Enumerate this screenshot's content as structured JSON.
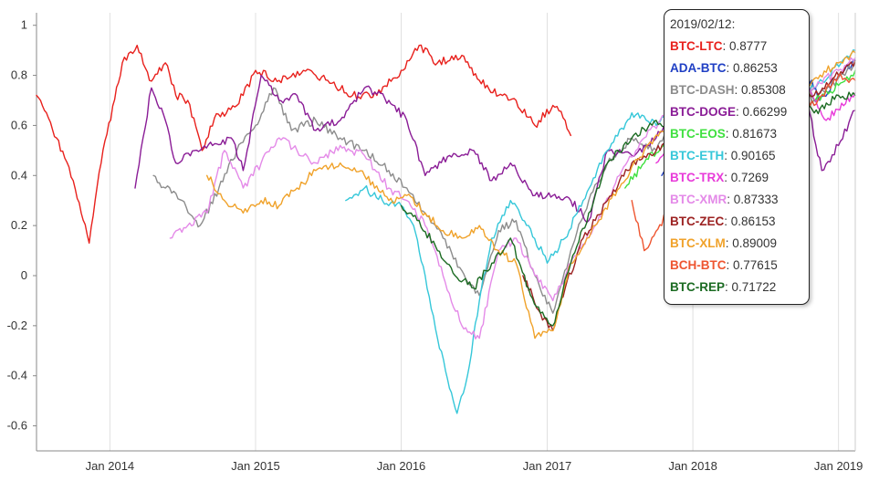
{
  "chart_data": {
    "type": "line",
    "ylim": [
      -0.7,
      1.05
    ],
    "y_ticks": [
      1,
      0.8,
      0.6,
      0.4,
      0.2,
      0,
      -0.2,
      -0.4,
      -0.6
    ],
    "y_tick_labels": [
      "1",
      "0.8",
      "0.6",
      "0.4",
      "0.2",
      "0",
      "-0.2",
      "-0.4",
      "-0.6"
    ],
    "x_range": [
      "2013-07-01",
      "2019-02-12"
    ],
    "x_ticks": [
      "2014-01-01",
      "2015-01-01",
      "2016-01-01",
      "2017-01-01",
      "2018-01-01",
      "2019-01-01"
    ],
    "x_tick_labels": [
      "Jan 2014",
      "Jan 2015",
      "Jan 2016",
      "Jan 2017",
      "Jan 2018",
      "Jan 2019"
    ],
    "grid": "vertical lines at x ticks",
    "tooltip": {
      "date": "2019/02/12:",
      "rows": [
        {
          "name": "BTC-LTC",
          "value": "0.8777"
        },
        {
          "name": "ADA-BTC",
          "value": "0.86253"
        },
        {
          "name": "BTC-DASH",
          "value": "0.85308"
        },
        {
          "name": "BTC-DOGE",
          "value": "0.66299"
        },
        {
          "name": "BTC-EOS",
          "value": "0.81673"
        },
        {
          "name": "BTC-ETH",
          "value": "0.90165"
        },
        {
          "name": "BTC-TRX",
          "value": "0.7269"
        },
        {
          "name": "BTC-XMR",
          "value": "0.87333"
        },
        {
          "name": "BTC-ZEC",
          "value": "0.86153"
        },
        {
          "name": "BTC-XLM",
          "value": "0.89009"
        },
        {
          "name": "BCH-BTC",
          "value": "0.77615"
        },
        {
          "name": "BTC-REP",
          "value": "0.71722"
        }
      ]
    },
    "series": [
      {
        "name": "BTC-LTC",
        "color": "#e8201c",
        "x": [
          "2013-07-01",
          "2013-08-20",
          "2013-10-01",
          "2013-11-10",
          "2013-12-10",
          "2014-02-01",
          "2014-03-10",
          "2014-04-10",
          "2014-05-20",
          "2014-06-15",
          "2014-07-15",
          "2014-08-20",
          "2014-09-20",
          "2014-10-20",
          "2014-12-01",
          "2015-01-01",
          "2015-03-01",
          "2015-05-01",
          "2015-07-01",
          "2015-09-01",
          "2015-11-01",
          "2016-01-01",
          "2016-02-15",
          "2016-04-01",
          "2016-06-01",
          "2016-07-15",
          "2016-09-01",
          "2016-10-15",
          "2016-12-01",
          "2017-01-15",
          "2017-02-15",
          "2017-03-01"
        ],
        "y": [
          0.72,
          0.55,
          0.38,
          0.13,
          0.45,
          0.85,
          0.92,
          0.78,
          0.85,
          0.72,
          0.7,
          0.5,
          0.63,
          0.65,
          0.72,
          0.82,
          0.78,
          0.82,
          0.78,
          0.72,
          0.72,
          0.82,
          0.92,
          0.85,
          0.88,
          0.78,
          0.72,
          0.7,
          0.6,
          0.68,
          0.62,
          0.56
        ]
      },
      {
        "name": "ADA-BTC",
        "color": "#1f3fc4",
        "x": [
          "2017-10-15",
          "2017-12-01",
          "2018-02-01",
          "2018-04-01",
          "2018-06-01",
          "2018-08-01",
          "2018-10-01",
          "2018-11-15",
          "2019-01-01",
          "2019-02-12"
        ],
        "y": [
          0.4,
          0.48,
          0.62,
          0.72,
          0.78,
          0.82,
          0.85,
          0.7,
          0.8,
          0.86
        ]
      },
      {
        "name": "BTC-DASH",
        "color": "#8c8c8c",
        "x": [
          "2014-04-20",
          "2014-05-20",
          "2014-07-01",
          "2014-08-15",
          "2014-10-01",
          "2014-11-15",
          "2015-01-01",
          "2015-02-15",
          "2015-04-01",
          "2015-06-01",
          "2015-08-01",
          "2015-10-01",
          "2015-12-01",
          "2016-01-15",
          "2016-03-01",
          "2016-04-15",
          "2016-06-01",
          "2016-07-15",
          "2016-09-01",
          "2016-10-15",
          "2016-12-01",
          "2017-01-15",
          "2017-03-01",
          "2017-04-15",
          "2017-06-01",
          "2017-08-01",
          "2017-10-01",
          "2017-12-01",
          "2018-02-01",
          "2018-05-01",
          "2018-08-01",
          "2018-11-01",
          "2019-02-12"
        ],
        "y": [
          0.4,
          0.35,
          0.3,
          0.2,
          0.35,
          0.5,
          0.6,
          0.75,
          0.58,
          0.62,
          0.55,
          0.5,
          0.42,
          0.35,
          0.25,
          0.15,
          0.02,
          -0.08,
          0.18,
          0.22,
          0.0,
          -0.15,
          0.1,
          0.3,
          0.45,
          0.55,
          0.5,
          0.65,
          0.72,
          0.76,
          0.8,
          0.7,
          0.85
        ]
      },
      {
        "name": "BTC-DOGE",
        "color": "#8a1c96",
        "x": [
          "2014-03-05",
          "2014-03-25",
          "2014-04-15",
          "2014-05-20",
          "2014-06-15",
          "2014-08-01",
          "2014-09-15",
          "2014-11-01",
          "2014-12-01",
          "2015-01-15",
          "2015-03-01",
          "2015-04-15",
          "2015-06-01",
          "2015-08-01",
          "2015-10-01",
          "2015-12-01",
          "2016-01-15",
          "2016-03-01",
          "2016-05-01",
          "2016-07-01",
          "2016-08-15",
          "2016-10-01",
          "2016-12-01",
          "2017-01-15",
          "2017-03-01",
          "2017-04-15",
          "2017-06-01",
          "2017-08-01",
          "2017-10-01",
          "2017-12-01",
          "2018-02-01",
          "2018-04-01",
          "2018-06-01",
          "2018-08-01",
          "2018-10-01",
          "2018-11-20",
          "2019-01-01",
          "2019-02-12"
        ],
        "y": [
          0.35,
          0.55,
          0.75,
          0.62,
          0.45,
          0.5,
          0.52,
          0.55,
          0.42,
          0.8,
          0.7,
          0.72,
          0.58,
          0.62,
          0.75,
          0.7,
          0.62,
          0.4,
          0.48,
          0.5,
          0.38,
          0.45,
          0.32,
          0.32,
          0.3,
          0.22,
          0.5,
          0.48,
          0.55,
          0.68,
          0.7,
          0.72,
          0.75,
          0.78,
          0.8,
          0.42,
          0.52,
          0.66
        ]
      },
      {
        "name": "BTC-EOS",
        "color": "#3fe03f",
        "x": [
          "2017-07-15",
          "2017-09-01",
          "2017-11-01",
          "2018-01-01",
          "2018-03-01",
          "2018-05-01",
          "2018-07-01",
          "2018-09-01",
          "2018-11-01",
          "2019-01-01",
          "2019-02-12"
        ],
        "y": [
          0.35,
          0.45,
          0.55,
          0.62,
          0.68,
          0.7,
          0.72,
          0.75,
          0.7,
          0.76,
          0.82
        ]
      },
      {
        "name": "BTC-ETH",
        "color": "#35c7d9",
        "x": [
          "2015-08-15",
          "2015-10-01",
          "2015-11-15",
          "2016-01-01",
          "2016-02-01",
          "2016-03-01",
          "2016-04-01",
          "2016-05-01",
          "2016-05-20",
          "2016-06-15",
          "2016-07-15",
          "2016-08-15",
          "2016-10-01",
          "2016-11-15",
          "2017-01-01",
          "2017-02-15",
          "2017-04-01",
          "2017-06-01",
          "2017-08-01",
          "2017-10-01",
          "2017-12-01",
          "2018-02-01",
          "2018-05-01",
          "2018-08-01",
          "2018-11-01",
          "2019-02-12"
        ],
        "y": [
          0.3,
          0.35,
          0.3,
          0.28,
          0.2,
          0.0,
          -0.25,
          -0.45,
          -0.55,
          -0.4,
          -0.1,
          0.15,
          0.3,
          0.2,
          0.05,
          0.15,
          0.3,
          0.5,
          0.65,
          0.6,
          0.7,
          0.75,
          0.78,
          0.82,
          0.75,
          0.9
        ]
      },
      {
        "name": "BTC-TRX",
        "color": "#e83ad9",
        "x": [
          "2017-10-01",
          "2017-12-01",
          "2018-02-01",
          "2018-04-01",
          "2018-06-01",
          "2018-08-01",
          "2018-10-01",
          "2018-12-01",
          "2019-02-12"
        ],
        "y": [
          0.45,
          0.55,
          0.68,
          0.72,
          0.7,
          0.75,
          0.8,
          0.62,
          0.73
        ]
      },
      {
        "name": "BTC-XMR",
        "color": "#e48ae8",
        "x": [
          "2014-06-01",
          "2014-07-15",
          "2014-09-01",
          "2014-10-15",
          "2014-12-01",
          "2015-01-15",
          "2015-03-01",
          "2015-04-15",
          "2015-06-01",
          "2015-08-01",
          "2015-10-01",
          "2015-12-01",
          "2016-01-15",
          "2016-03-01",
          "2016-04-15",
          "2016-06-01",
          "2016-07-15",
          "2016-09-01",
          "2016-10-15",
          "2016-12-01",
          "2017-01-15",
          "2017-03-01",
          "2017-05-01",
          "2017-07-01",
          "2017-09-01",
          "2017-11-01",
          "2018-01-01",
          "2018-04-01",
          "2018-07-01",
          "2018-10-01",
          "2019-01-01",
          "2019-02-12"
        ],
        "y": [
          0.15,
          0.2,
          0.25,
          0.5,
          0.35,
          0.45,
          0.55,
          0.5,
          0.45,
          0.52,
          0.48,
          0.35,
          0.3,
          0.2,
          0.0,
          -0.2,
          -0.25,
          0.1,
          0.15,
          0.0,
          -0.1,
          0.05,
          0.2,
          0.4,
          0.55,
          0.65,
          0.75,
          0.78,
          0.8,
          0.72,
          0.82,
          0.87
        ]
      },
      {
        "name": "BTC-ZEC",
        "color": "#9c2222",
        "x": [
          "2016-11-01",
          "2016-12-15",
          "2017-01-15",
          "2017-02-15",
          "2017-04-01",
          "2017-06-01",
          "2017-08-01",
          "2017-10-01",
          "2017-12-01",
          "2018-02-01",
          "2018-05-01",
          "2018-08-01",
          "2018-11-01",
          "2019-02-12"
        ],
        "y": [
          0.0,
          -0.15,
          -0.22,
          -0.05,
          0.15,
          0.3,
          0.45,
          0.5,
          0.6,
          0.68,
          0.75,
          0.8,
          0.72,
          0.86
        ]
      },
      {
        "name": "BTC-XLM",
        "color": "#f0a22a",
        "x": [
          "2014-09-01",
          "2014-10-15",
          "2014-12-01",
          "2015-01-15",
          "2015-03-01",
          "2015-04-15",
          "2015-06-01",
          "2015-08-01",
          "2015-10-01",
          "2015-12-01",
          "2016-01-15",
          "2016-03-01",
          "2016-04-15",
          "2016-06-01",
          "2016-07-15",
          "2016-09-01",
          "2016-10-15",
          "2016-12-01",
          "2017-01-15",
          "2017-03-01",
          "2017-05-01",
          "2017-07-01",
          "2017-09-01",
          "2017-11-01",
          "2018-01-01",
          "2018-04-01",
          "2018-07-01",
          "2018-10-01",
          "2019-01-01",
          "2019-02-12"
        ],
        "y": [
          0.4,
          0.3,
          0.25,
          0.3,
          0.28,
          0.35,
          0.42,
          0.45,
          0.4,
          0.3,
          0.32,
          0.25,
          0.18,
          0.15,
          0.2,
          0.1,
          0.05,
          -0.25,
          -0.22,
          0.05,
          0.2,
          0.35,
          0.5,
          0.6,
          0.65,
          0.7,
          0.78,
          0.75,
          0.85,
          0.89
        ]
      },
      {
        "name": "BCH-BTC",
        "color": "#ee5530",
        "x": [
          "2017-08-01",
          "2017-09-01",
          "2017-10-15",
          "2017-12-01",
          "2018-01-15",
          "2018-03-01",
          "2018-05-01",
          "2018-07-01",
          "2018-09-01",
          "2018-11-01",
          "2019-01-01",
          "2019-02-12"
        ],
        "y": [
          0.3,
          0.1,
          0.2,
          0.45,
          0.6,
          0.65,
          0.7,
          0.72,
          0.75,
          0.68,
          0.8,
          0.78
        ]
      },
      {
        "name": "BTC-REP",
        "color": "#1b6b22",
        "x": [
          "2016-01-01",
          "2016-02-15",
          "2016-04-01",
          "2016-05-15",
          "2016-07-01",
          "2016-08-15",
          "2016-10-01",
          "2016-11-15",
          "2016-12-15",
          "2017-01-15",
          "2017-03-01",
          "2017-04-15",
          "2017-06-01",
          "2017-08-01",
          "2017-10-01",
          "2017-12-01",
          "2018-02-01",
          "2018-05-01",
          "2018-08-01",
          "2018-11-01",
          "2019-01-01",
          "2019-02-12"
        ],
        "y": [
          0.28,
          0.22,
          0.1,
          0.0,
          -0.05,
          0.05,
          0.15,
          -0.05,
          -0.15,
          -0.2,
          0.05,
          0.25,
          0.45,
          0.55,
          0.62,
          0.5,
          0.65,
          0.7,
          0.75,
          0.65,
          0.72,
          0.72
        ]
      }
    ]
  }
}
